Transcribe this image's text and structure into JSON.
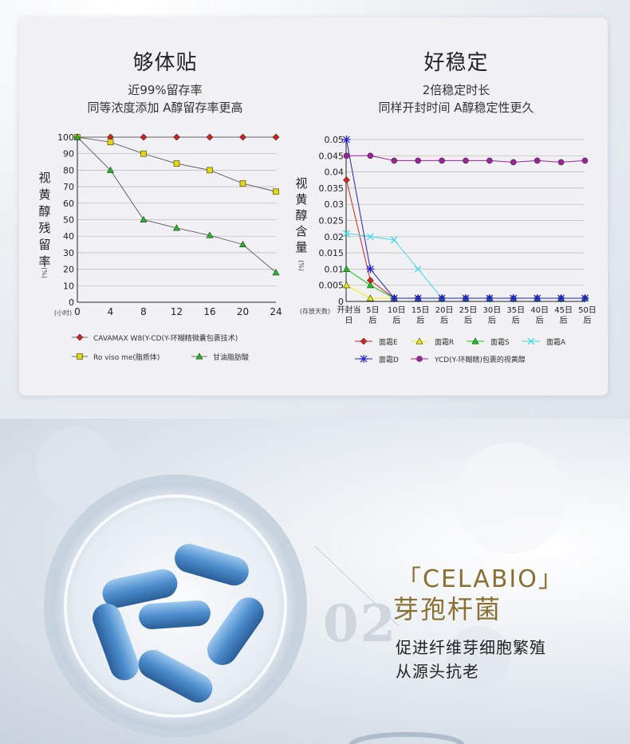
{
  "left": {
    "title": "够体贴",
    "subtitle1": "近99%留存率",
    "subtitle2": "同等浓度添加 A醇留存率更高"
  },
  "right": {
    "title": "好稳定",
    "subtitle1": "2倍稳定时长",
    "subtitle2": "同样开封时间 A醇稳定性更久"
  },
  "bottom": {
    "brand_line1": "「CELABIO」",
    "brand_line2": "芽孢杆菌",
    "number": "02",
    "desc_line1": "促进纤维芽细胞繁殖",
    "desc_line2": "从源头抗老"
  },
  "chart_data": [
    {
      "type": "line",
      "ylabel": "视黄醇残留率",
      "yunit": "(%)",
      "xunit": "(小时)",
      "x": [
        0,
        4,
        8,
        12,
        16,
        20,
        24
      ],
      "xticks": [
        "0",
        "4",
        "8",
        "12",
        "16",
        "20",
        "24"
      ],
      "yticks": [
        "0",
        "10",
        "20",
        "30",
        "40",
        "50",
        "60",
        "70",
        "80",
        "90",
        "100"
      ],
      "ylim": [
        0,
        100
      ],
      "grid": true,
      "series": [
        {
          "name": "CAVAMAX W8(Y-CD(Y-环糊精微囊包裹技术)",
          "color": "#d42020",
          "marker": "diamond",
          "values": [
            100,
            100,
            100,
            100,
            100,
            100,
            100
          ]
        },
        {
          "name": "Ro viso me(脂质体)",
          "color": "#e8d800",
          "marker": "square",
          "values": [
            100,
            97,
            90,
            84,
            80,
            72,
            67
          ]
        },
        {
          "name": "甘油脂肪酸",
          "color": "#22bb22",
          "marker": "triangle",
          "values": [
            100,
            80,
            50,
            45,
            40.5,
            35,
            18
          ]
        }
      ]
    },
    {
      "type": "line",
      "ylabel": "视黄醇含量",
      "yunit": "(%)",
      "xunit": "(存放天数)",
      "xticks": [
        "开封当日",
        "5日后",
        "10日后",
        "15日后",
        "20日后",
        "25日后",
        "30日后",
        "35日后",
        "40日后",
        "45日后",
        "50日后"
      ],
      "yticks": [
        "0",
        "0.005",
        "0.01",
        "0.015",
        "0.02",
        "0.025",
        "0.03",
        "0.035",
        "0.04",
        "0.045",
        "0.05"
      ],
      "ylim": [
        0,
        0.05
      ],
      "grid": true,
      "series": [
        {
          "name": "面霜E",
          "color": "#e02020",
          "marker": "diamond",
          "values": [
            0.0375,
            0.0065,
            0.001,
            0.001,
            0.001,
            0.001,
            0.001,
            0.001,
            0.001,
            0.001,
            0.001
          ]
        },
        {
          "name": "面霜R",
          "color": "#eeee00",
          "marker": "triangle",
          "values": [
            0.005,
            0.001,
            0.001,
            0.001,
            0.001,
            0.001,
            0.001,
            0.001,
            0.001,
            0.001,
            0.001
          ]
        },
        {
          "name": "面霜S",
          "color": "#10cc10",
          "marker": "triangle",
          "values": [
            0.01,
            0.005,
            0.001,
            0.001,
            0.001,
            0.001,
            0.001,
            0.001,
            0.001,
            0.001,
            0.001
          ]
        },
        {
          "name": "面霜A",
          "color": "#40d8e8",
          "marker": "x",
          "values": [
            0.021,
            0.02,
            0.019,
            0.01,
            0.001,
            0.001,
            0.001,
            0.001,
            0.001,
            0.001,
            0.001
          ]
        },
        {
          "name": "面霜D",
          "color": "#2020d8",
          "marker": "star",
          "values": [
            0.05,
            0.01,
            0.001,
            0.001,
            0.001,
            0.001,
            0.001,
            0.001,
            0.001,
            0.001,
            0.001
          ]
        },
        {
          "name": "YCD(Y-环糊精)包裹的视黄醇",
          "color": "#a020a0",
          "marker": "circle",
          "values": [
            0.045,
            0.045,
            0.0435,
            0.0435,
            0.0435,
            0.0435,
            0.0435,
            0.043,
            0.0435,
            0.043,
            0.0435
          ]
        }
      ]
    }
  ]
}
